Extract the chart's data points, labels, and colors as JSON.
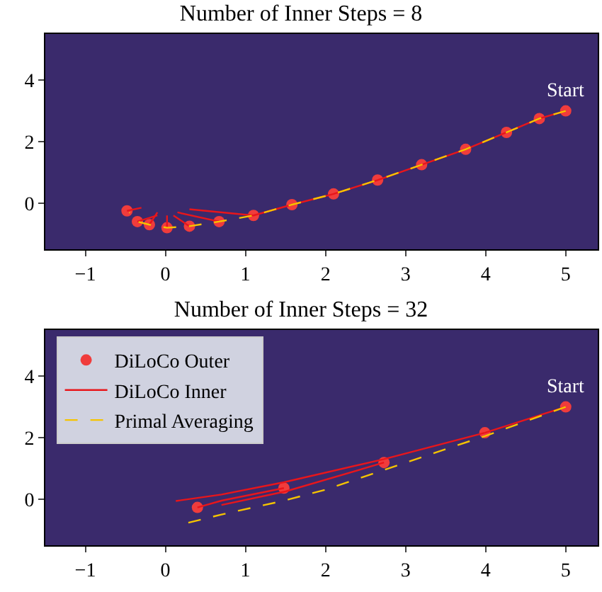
{
  "chart_data": [
    {
      "type": "line",
      "title": "Number of Inner Steps = 8",
      "xlim": [
        -1.5,
        5.4
      ],
      "ylim": [
        -1.5,
        5.5
      ],
      "xticks": [
        -1,
        0,
        1,
        2,
        3,
        4,
        5
      ],
      "yticks": [
        0,
        2,
        4
      ],
      "legend": false,
      "annotations": [
        {
          "text": "Start",
          "x": 5,
          "y": 3
        }
      ],
      "series": [
        {
          "type": "scatter",
          "marker": "circle",
          "color": "#f03c3c",
          "x": [
            5,
            4.67,
            4.26,
            3.75,
            3.2,
            2.65,
            2.1,
            1.58,
            1.1,
            0.67,
            0.3,
            0.02,
            -0.2,
            -0.35,
            -0.48
          ],
          "values": [
            3,
            2.75,
            2.3,
            1.75,
            1.25,
            0.75,
            0.3,
            -0.05,
            -0.4,
            -0.6,
            -0.75,
            -0.8,
            -0.7,
            -0.6,
            -0.25
          ]
        },
        {
          "line_style": "solid",
          "color": "#e8161b",
          "x": [
            5,
            4.67,
            4.26,
            3.75,
            3.2,
            2.65,
            2.1,
            1.58,
            1.1,
            0.3,
            null,
            0.67,
            0.15,
            null,
            0.3,
            0.1,
            null,
            0.02,
            0.02,
            null,
            -0.2,
            -0.1,
            null,
            -0.35,
            -0.1,
            null,
            -0.48,
            -0.3
          ],
          "values": [
            3,
            2.75,
            2.3,
            1.75,
            1.25,
            0.75,
            0.3,
            -0.05,
            -0.4,
            -0.2,
            null,
            -0.6,
            -0.3,
            null,
            -0.75,
            -0.4,
            null,
            -0.8,
            -0.4,
            null,
            -0.7,
            -0.3,
            null,
            -0.6,
            -0.4,
            null,
            -0.25,
            -0.15
          ]
        },
        {
          "line_style": "dashed",
          "color": "#f5c400",
          "x": [
            5,
            4.67,
            4.26,
            3.75,
            3.2,
            2.65,
            2.1,
            1.58,
            1.1,
            0.67,
            0.3,
            0.02,
            -0.2,
            -0.35,
            -0.45
          ],
          "values": [
            3,
            2.75,
            2.3,
            1.75,
            1.25,
            0.75,
            0.3,
            -0.05,
            -0.4,
            -0.6,
            -0.75,
            -0.8,
            -0.7,
            -0.6,
            -0.3
          ]
        }
      ]
    },
    {
      "type": "line",
      "title": "Number of Inner Steps = 32",
      "xlim": [
        -1.5,
        5.4
      ],
      "ylim": [
        -1.5,
        5.5
      ],
      "xticks": [
        -1,
        0,
        1,
        2,
        3,
        4,
        5
      ],
      "yticks": [
        0,
        2,
        4
      ],
      "legend": "top left",
      "annotations": [
        {
          "text": "Start",
          "x": 5,
          "y": 3
        }
      ],
      "series": [
        {
          "type": "scatter",
          "name": "DiLoCo Outer",
          "marker": "circle",
          "color": "#f03c3c",
          "x": [
            5,
            3.99,
            2.73,
            1.48,
            0.4
          ],
          "values": [
            3,
            2.16,
            1.19,
            0.36,
            -0.27
          ]
        },
        {
          "name": "DiLoCo Inner",
          "line_style": "solid",
          "color": "#e8161b",
          "x": [
            5,
            3.99,
            null,
            3.99,
            2.73,
            1.48,
            0.7,
            0.13,
            null,
            2.73,
            1.5,
            0.7,
            null,
            1.48,
            0.7,
            0.4
          ],
          "values": [
            3,
            2.16,
            null,
            2.16,
            1.3,
            0.55,
            0.15,
            -0.06,
            null,
            1.19,
            0.25,
            -0.19,
            null,
            0.36,
            -0.05,
            -0.27
          ]
        },
        {
          "name": "Primal Averaging",
          "line_style": "dashed",
          "color": "#f5c400",
          "x": [
            5,
            3.99,
            2.73,
            1.99,
            1.48,
            0.7,
            0.28
          ],
          "values": [
            3,
            2.05,
            0.95,
            0.3,
            -0.05,
            -0.5,
            -0.77
          ]
        }
      ]
    }
  ]
}
